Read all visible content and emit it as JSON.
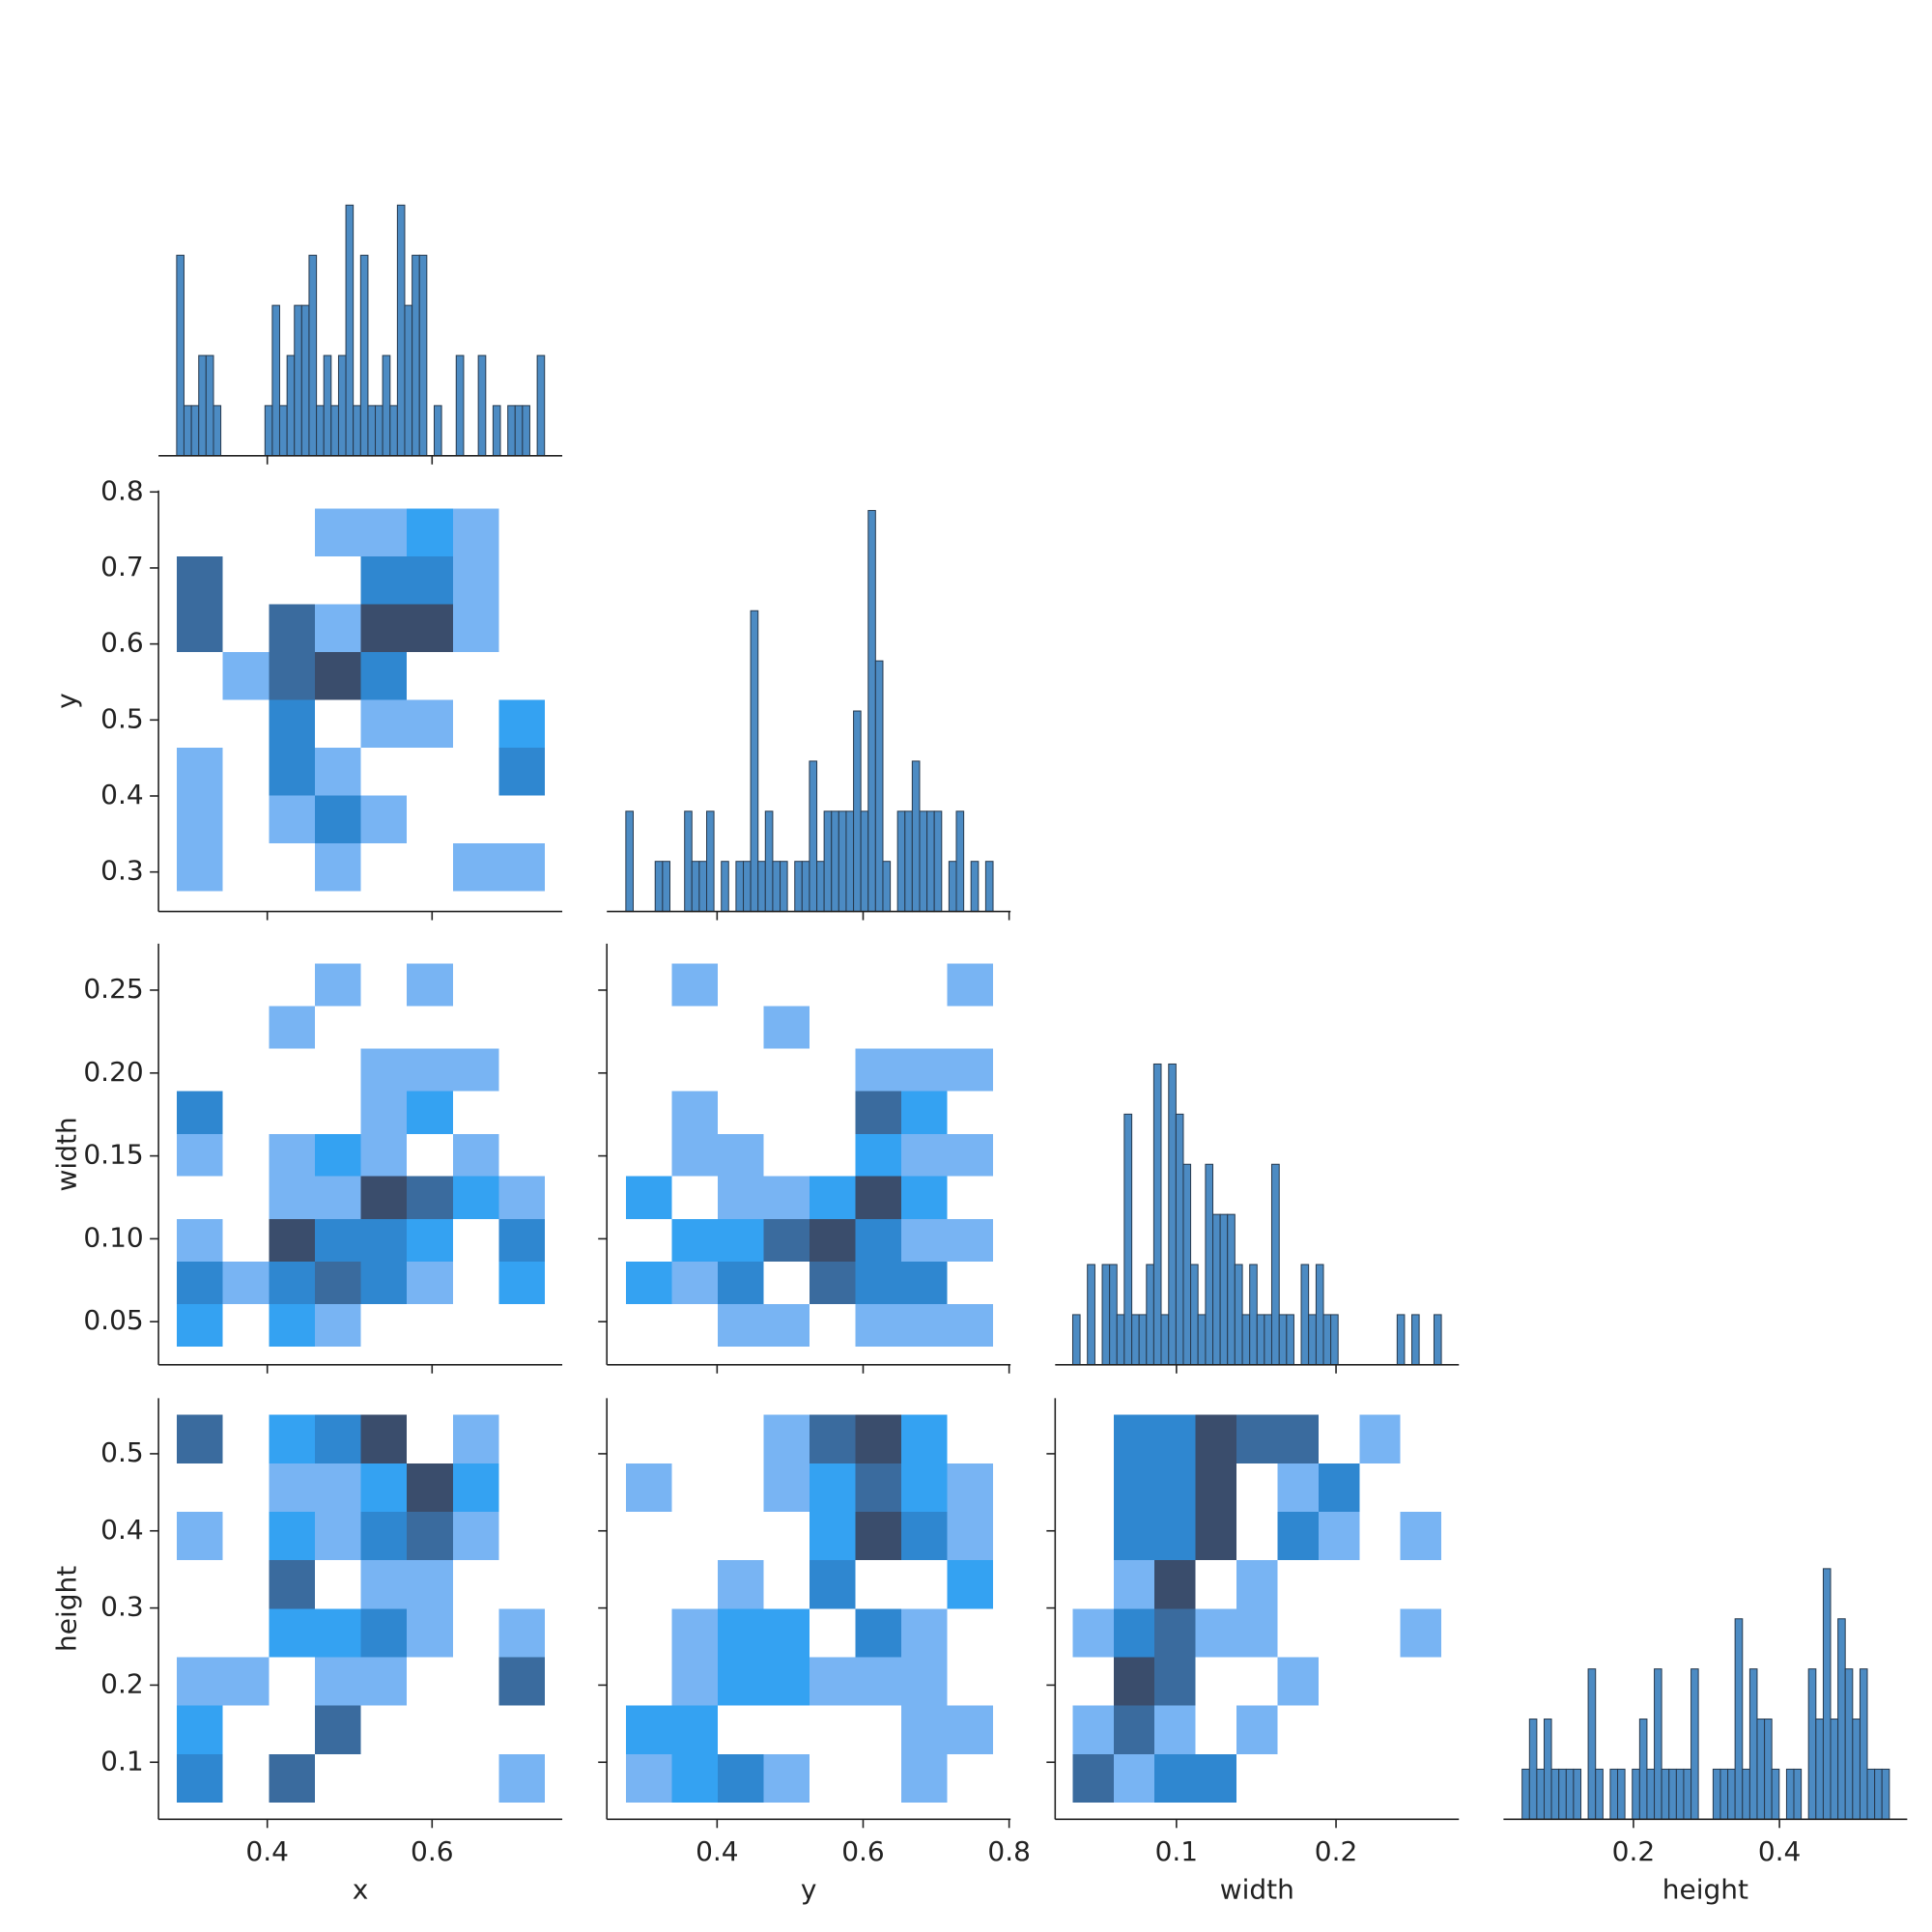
{
  "columns": [
    {
      "label": "x",
      "lim": [
        0.268,
        0.758
      ],
      "ticks": [
        0.4,
        0.6
      ]
    },
    {
      "label": "y",
      "lim": [
        0.249,
        0.802
      ],
      "ticks": [
        0.4,
        0.6,
        0.8
      ]
    },
    {
      "label": "width",
      "lim": [
        0.024,
        0.277
      ],
      "ticks": [
        0.1,
        0.2
      ]
    },
    {
      "label": "height",
      "lim": [
        0.022,
        0.575
      ],
      "ticks": [
        0.2,
        0.4
      ]
    }
  ],
  "rows": [
    {
      "label": "y",
      "lim": [
        0.248,
        0.802
      ],
      "ticks": [
        0.3,
        0.4,
        0.5,
        0.6,
        0.7,
        0.8
      ]
    },
    {
      "label": "width",
      "lim": [
        0.024,
        0.278
      ],
      "ticks": [
        0.05,
        {
          "value": 0.1,
          "label": "0.10"
        },
        0.15,
        {
          "value": 0.2,
          "label": "0.20"
        },
        0.25
      ]
    },
    {
      "label": "height",
      "lim": [
        0.026,
        0.572
      ],
      "ticks": [
        0.1,
        0.2,
        0.3,
        0.4,
        0.5
      ]
    }
  ],
  "hist_color": "#4c8bc3",
  "hist_edge": "#27394d",
  "heat_colors": [
    "#78b4f3",
    "#34a2f2",
    "#2f87d0",
    "#3a6b9e",
    "#3a4d6c"
  ],
  "chart_data": [
    {
      "type": "histogram",
      "ylim": [
        0,
        8.4
      ],
      "bins": [
        0.29,
        0.2989,
        0.3079,
        0.3168,
        0.3257,
        0.3347,
        0.3436,
        0.3525,
        0.3614,
        0.3704,
        0.3793,
        0.3882,
        0.3972,
        0.4061,
        0.415,
        0.424,
        0.4329,
        0.4418,
        0.4507,
        0.4597,
        0.4686,
        0.4775,
        0.4865,
        0.4954,
        0.5043,
        0.5133,
        0.5222,
        0.5311,
        0.54,
        0.549,
        0.5579,
        0.5668,
        0.5758,
        0.5847,
        0.5936,
        0.6026,
        0.6115,
        0.6204,
        0.6293,
        0.6383,
        0.6472,
        0.6561,
        0.6651,
        0.674,
        0.6829,
        0.6919,
        0.7008,
        0.7097,
        0.7186,
        0.7276,
        0.7365
      ],
      "values": [
        4,
        1,
        1,
        2,
        2,
        1,
        0,
        0,
        0,
        0,
        0,
        0,
        1,
        3,
        1,
        2,
        3,
        3,
        4,
        1,
        2,
        1,
        2,
        5,
        1,
        4,
        1,
        1,
        2,
        1,
        5,
        3,
        4,
        4,
        0,
        1,
        0,
        0,
        2,
        0,
        0,
        2,
        0,
        1,
        0,
        1,
        1,
        1,
        0,
        2
      ]
    },
    {
      "type": "heatmap",
      "xbins": [
        0.2902,
        0.346,
        0.4019,
        0.4577,
        0.5135,
        0.5694,
        0.6252,
        0.681,
        0.7368
      ],
      "ybins": [
        0.275,
        0.3379,
        0.4008,
        0.4636,
        0.5265,
        0.5894,
        0.6523,
        0.7151,
        0.778
      ],
      "values": [
        [
          1,
          null,
          null,
          1,
          null,
          null,
          1,
          1
        ],
        [
          1,
          null,
          1,
          3,
          1,
          null,
          null,
          null
        ],
        [
          1,
          null,
          3,
          1,
          null,
          null,
          null,
          3
        ],
        [
          null,
          null,
          3,
          null,
          1,
          1,
          null,
          2
        ],
        [
          null,
          1,
          4,
          5,
          3,
          null,
          null,
          null
        ],
        [
          4,
          null,
          4,
          1,
          5,
          5,
          1,
          null
        ],
        [
          4,
          null,
          null,
          null,
          3,
          3,
          1,
          null
        ],
        [
          null,
          null,
          null,
          1,
          1,
          2,
          1,
          null
        ]
      ]
    },
    {
      "type": "histogram",
      "ylim": [
        0,
        8.4
      ],
      "bins": [
        0.275,
        0.2851,
        0.2951,
        0.3052,
        0.3152,
        0.3253,
        0.3354,
        0.3454,
        0.3555,
        0.3655,
        0.3756,
        0.3857,
        0.3957,
        0.4058,
        0.4158,
        0.4259,
        0.436,
        0.446,
        0.4561,
        0.4661,
        0.4762,
        0.4863,
        0.4963,
        0.5064,
        0.5164,
        0.5265,
        0.5366,
        0.5466,
        0.5567,
        0.5667,
        0.5768,
        0.5869,
        0.5969,
        0.607,
        0.617,
        0.6271,
        0.6372,
        0.6472,
        0.6573,
        0.6673,
        0.6774,
        0.6875,
        0.6975,
        0.7076,
        0.7176,
        0.7277,
        0.7378,
        0.7478,
        0.7579,
        0.7679,
        0.778
      ],
      "values": [
        2,
        0,
        0,
        0,
        1,
        1,
        0,
        0,
        2,
        1,
        1,
        2,
        0,
        1,
        0,
        1,
        1,
        6,
        1,
        2,
        1,
        1,
        0,
        1,
        1,
        3,
        1,
        2,
        2,
        2,
        2,
        4,
        2,
        8,
        5,
        1,
        0,
        2,
        2,
        3,
        2,
        2,
        2,
        0,
        1,
        2,
        0,
        1,
        0,
        1
      ]
    },
    {
      "type": "heatmap",
      "xbins": [
        0.2902,
        0.346,
        0.4019,
        0.4577,
        0.5135,
        0.5694,
        0.6252,
        0.681,
        0.7368
      ],
      "ybins": [
        0.035,
        0.0607,
        0.0863,
        0.112,
        0.1377,
        0.1633,
        0.189,
        0.2147,
        0.2403,
        0.266
      ],
      "values": [
        [
          2,
          null,
          2,
          1,
          null,
          null,
          null,
          null
        ],
        [
          3,
          1,
          3,
          4,
          3,
          1,
          null,
          2
        ],
        [
          1,
          null,
          5,
          3,
          3,
          2,
          null,
          3
        ],
        [
          null,
          null,
          1,
          1,
          5,
          4,
          2,
          1
        ],
        [
          1,
          null,
          1,
          2,
          1,
          null,
          1,
          null
        ],
        [
          3,
          null,
          null,
          null,
          1,
          2,
          null,
          null
        ],
        [
          null,
          null,
          null,
          null,
          1,
          1,
          1,
          null
        ],
        [
          null,
          null,
          1,
          null,
          null,
          null,
          null,
          null
        ],
        [
          null,
          null,
          null,
          1,
          null,
          1,
          null,
          null
        ]
      ]
    },
    {
      "type": "heatmap",
      "xbins": [
        0.275,
        0.3379,
        0.4008,
        0.4636,
        0.5265,
        0.5894,
        0.6523,
        0.7151,
        0.778
      ],
      "ybins": [
        0.035,
        0.0607,
        0.0863,
        0.112,
        0.1377,
        0.1633,
        0.189,
        0.2147,
        0.2403,
        0.266
      ],
      "values": [
        [
          null,
          null,
          1,
          1,
          null,
          1,
          1,
          1
        ],
        [
          2,
          1,
          3,
          null,
          4,
          3,
          3,
          null
        ],
        [
          null,
          2,
          2,
          4,
          5,
          3,
          1,
          1
        ],
        [
          2,
          null,
          1,
          1,
          2,
          5,
          2,
          null
        ],
        [
          null,
          1,
          1,
          null,
          null,
          2,
          1,
          1
        ],
        [
          null,
          1,
          null,
          null,
          null,
          4,
          2,
          null
        ],
        [
          null,
          null,
          null,
          null,
          null,
          1,
          1,
          1
        ],
        [
          null,
          null,
          null,
          1,
          null,
          null,
          null,
          null
        ],
        [
          null,
          1,
          null,
          null,
          null,
          null,
          null,
          1
        ]
      ]
    },
    {
      "type": "histogram",
      "ylim": [
        0,
        8.4
      ],
      "bins": [
        0.035,
        0.0396,
        0.0442,
        0.0489,
        0.0535,
        0.0581,
        0.0627,
        0.0673,
        0.072,
        0.0766,
        0.0812,
        0.0858,
        0.0904,
        0.0951,
        0.0997,
        0.1043,
        0.1089,
        0.1135,
        0.1182,
        0.1228,
        0.1274,
        0.132,
        0.1366,
        0.1413,
        0.1459,
        0.1505,
        0.1551,
        0.1597,
        0.1644,
        0.169,
        0.1736,
        0.1782,
        0.1828,
        0.1875,
        0.1921,
        0.1967,
        0.2013,
        0.2059,
        0.2106,
        0.2152,
        0.2198,
        0.2244,
        0.229,
        0.2337,
        0.2383,
        0.2429,
        0.2475,
        0.2521,
        0.2568,
        0.2614,
        0.266
      ],
      "values": [
        1,
        0,
        2,
        0,
        2,
        2,
        1,
        5,
        1,
        1,
        2,
        6,
        1,
        6,
        5,
        4,
        2,
        1,
        4,
        3,
        3,
        3,
        2,
        1,
        2,
        1,
        1,
        4,
        1,
        1,
        0,
        2,
        1,
        2,
        1,
        1,
        0,
        0,
        0,
        0,
        0,
        0,
        0,
        0,
        1,
        0,
        1,
        0,
        0,
        1
      ]
    },
    {
      "type": "heatmap",
      "xbins": [
        0.2902,
        0.346,
        0.4019,
        0.4577,
        0.5135,
        0.5694,
        0.6252,
        0.681,
        0.7368
      ],
      "ybins": [
        0.0475,
        0.1104,
        0.1733,
        0.2361,
        0.299,
        0.3619,
        0.4248,
        0.4876,
        0.5505
      ],
      "values": [
        [
          3,
          null,
          4,
          null,
          null,
          null,
          null,
          1
        ],
        [
          2,
          null,
          null,
          4,
          null,
          null,
          null,
          null
        ],
        [
          1,
          1,
          null,
          1,
          1,
          null,
          null,
          4
        ],
        [
          null,
          null,
          2,
          2,
          3,
          1,
          null,
          1
        ],
        [
          null,
          null,
          4,
          null,
          1,
          1,
          null,
          null
        ],
        [
          1,
          null,
          2,
          1,
          3,
          4,
          1,
          null
        ],
        [
          null,
          null,
          1,
          1,
          2,
          5,
          2,
          null
        ],
        [
          4,
          null,
          2,
          3,
          5,
          null,
          1,
          null
        ]
      ]
    },
    {
      "type": "heatmap",
      "xbins": [
        0.275,
        0.3379,
        0.4008,
        0.4636,
        0.5265,
        0.5894,
        0.6523,
        0.7151,
        0.778
      ],
      "ybins": [
        0.0475,
        0.1104,
        0.1733,
        0.2361,
        0.299,
        0.3619,
        0.4248,
        0.4876,
        0.5505
      ],
      "values": [
        [
          1,
          2,
          3,
          1,
          null,
          null,
          1,
          null
        ],
        [
          2,
          2,
          null,
          null,
          null,
          null,
          1,
          1
        ],
        [
          null,
          1,
          2,
          2,
          1,
          1,
          1,
          null
        ],
        [
          null,
          1,
          2,
          2,
          null,
          3,
          1,
          null
        ],
        [
          null,
          null,
          1,
          null,
          3,
          null,
          null,
          2
        ],
        [
          null,
          null,
          null,
          null,
          2,
          5,
          3,
          1
        ],
        [
          1,
          null,
          null,
          1,
          2,
          4,
          2,
          1
        ],
        [
          null,
          null,
          null,
          1,
          4,
          5,
          2,
          null
        ]
      ]
    },
    {
      "type": "heatmap",
      "xbins": [
        0.035,
        0.0607,
        0.0863,
        0.112,
        0.1377,
        0.1633,
        0.189,
        0.2147,
        0.2403,
        0.266
      ],
      "ybins": [
        0.0475,
        0.1104,
        0.1733,
        0.2361,
        0.299,
        0.3619,
        0.4248,
        0.4876,
        0.5505
      ],
      "values": [
        [
          4,
          1,
          3,
          3,
          null,
          null,
          null,
          null,
          null
        ],
        [
          1,
          4,
          1,
          null,
          1,
          null,
          null,
          null,
          null
        ],
        [
          null,
          5,
          4,
          null,
          null,
          1,
          null,
          null,
          null
        ],
        [
          1,
          3,
          4,
          1,
          1,
          null,
          null,
          null,
          1
        ],
        [
          null,
          1,
          5,
          null,
          1,
          null,
          null,
          null,
          null
        ],
        [
          null,
          3,
          3,
          5,
          null,
          3,
          1,
          null,
          1
        ],
        [
          null,
          3,
          3,
          5,
          null,
          1,
          3,
          null,
          null
        ],
        [
          null,
          3,
          3,
          5,
          4,
          4,
          null,
          1,
          null
        ]
      ]
    },
    {
      "type": "histogram",
      "ylim": [
        0,
        8.4
      ],
      "bins": [
        0.0475,
        0.0576,
        0.0676,
        0.0777,
        0.0877,
        0.0978,
        0.1079,
        0.1179,
        0.128,
        0.138,
        0.1481,
        0.1582,
        0.1682,
        0.1783,
        0.1883,
        0.1984,
        0.2085,
        0.2185,
        0.2286,
        0.2386,
        0.2487,
        0.2588,
        0.2688,
        0.2789,
        0.2889,
        0.299,
        0.3091,
        0.3191,
        0.3292,
        0.3392,
        0.3493,
        0.3594,
        0.3694,
        0.3795,
        0.3895,
        0.3996,
        0.4097,
        0.4197,
        0.4298,
        0.4398,
        0.4499,
        0.46,
        0.47,
        0.4801,
        0.4901,
        0.5002,
        0.5103,
        0.5203,
        0.5304,
        0.5404,
        0.5505
      ],
      "values": [
        1,
        2,
        1,
        2,
        1,
        1,
        1,
        1,
        0,
        3,
        1,
        0,
        1,
        1,
        0,
        1,
        2,
        1,
        3,
        1,
        1,
        1,
        1,
        3,
        0,
        0,
        1,
        1,
        1,
        4,
        1,
        3,
        2,
        2,
        1,
        0,
        1,
        1,
        0,
        3,
        2,
        5,
        2,
        4,
        3,
        2,
        3,
        1,
        1,
        1
      ]
    }
  ]
}
